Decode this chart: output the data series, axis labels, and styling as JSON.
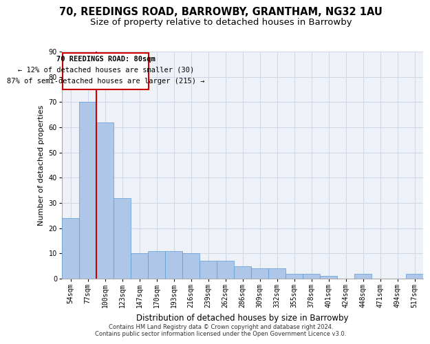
{
  "title_line1": "70, REEDINGS ROAD, BARROWBY, GRANTHAM, NG32 1AU",
  "title_line2": "Size of property relative to detached houses in Barrowby",
  "xlabel": "Distribution of detached houses by size in Barrowby",
  "ylabel": "Number of detached properties",
  "footnote": "Contains HM Land Registry data © Crown copyright and database right 2024.\nContains public sector information licensed under the Open Government Licence v3.0.",
  "categories": [
    "54sqm",
    "77sqm",
    "100sqm",
    "123sqm",
    "147sqm",
    "170sqm",
    "193sqm",
    "216sqm",
    "239sqm",
    "262sqm",
    "286sqm",
    "309sqm",
    "332sqm",
    "355sqm",
    "378sqm",
    "401sqm",
    "424sqm",
    "448sqm",
    "471sqm",
    "494sqm",
    "517sqm"
  ],
  "values": [
    24,
    70,
    62,
    32,
    10,
    11,
    11,
    10,
    7,
    7,
    5,
    4,
    4,
    2,
    2,
    1,
    0,
    2,
    0,
    0,
    2
  ],
  "bar_color": "#aec6e8",
  "bar_edge_color": "#5b9bd5",
  "grid_color": "#d0d8e8",
  "background_color": "#eef2f8",
  "annotation_line_color": "#cc0000",
  "annotation_box_color": "#cc0000",
  "property_label": "70 REEDINGS ROAD: 80sqm",
  "annotation_line1": "← 12% of detached houses are smaller (30)",
  "annotation_line2": "87% of semi-detached houses are larger (215) →",
  "ylim": [
    0,
    90
  ],
  "yticks": [
    0,
    10,
    20,
    30,
    40,
    50,
    60,
    70,
    80,
    90
  ],
  "title_fontsize": 10.5,
  "subtitle_fontsize": 9.5,
  "axis_label_fontsize": 8.5,
  "tick_fontsize": 7,
  "annotation_fontsize": 7.5,
  "footnote_fontsize": 6,
  "ylabel_fontsize": 8
}
